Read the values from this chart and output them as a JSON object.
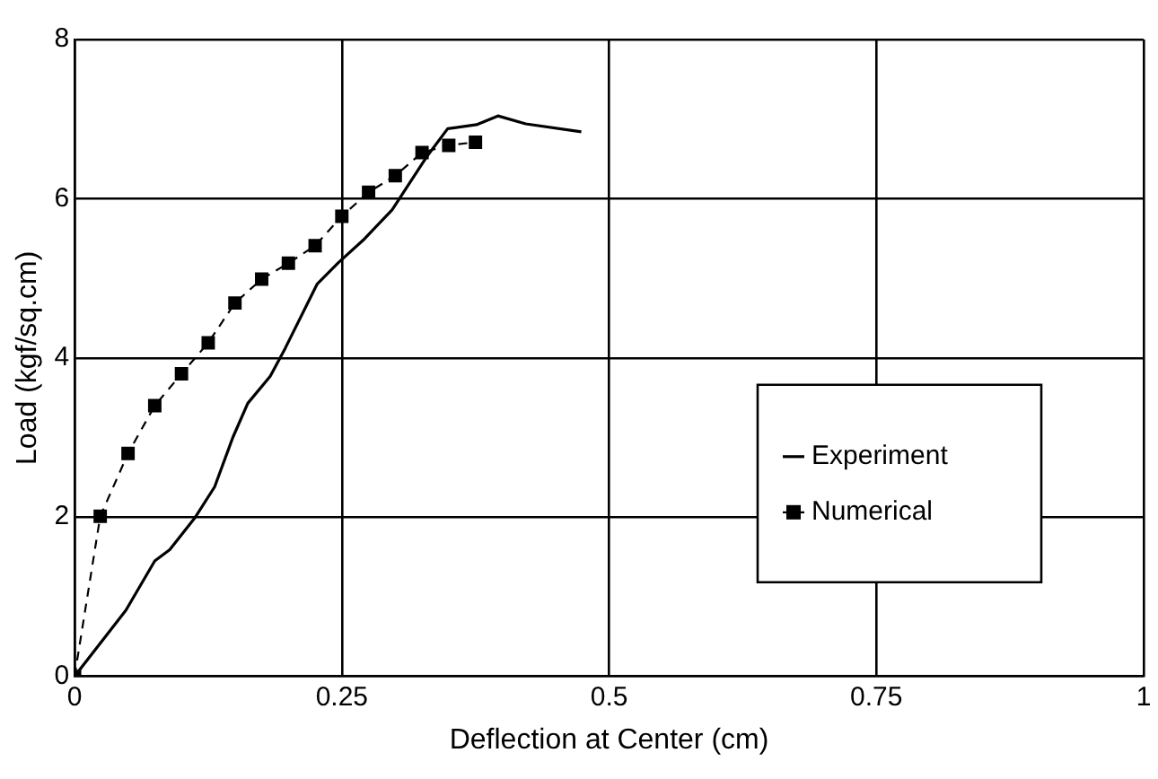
{
  "chart_data": {
    "type": "line",
    "xlabel": "Deflection at Center (cm)",
    "ylabel": "Load (kgf/sq.cm)",
    "xlim": [
      0,
      1
    ],
    "xticks": [
      0,
      0.25,
      0.5,
      0.75,
      1
    ],
    "ylim": [
      0,
      8
    ],
    "yticks": [
      0,
      2,
      4,
      6,
      8
    ],
    "grid": true,
    "legend": "right",
    "series": [
      {
        "name": "Experiment",
        "color": "#000000",
        "marker": "none",
        "line_style": "solid",
        "x": [
          0,
          0.048,
          0.075,
          0.089,
          0.113,
          0.131,
          0.148,
          0.162,
          0.183,
          0.197,
          0.227,
          0.247,
          0.27,
          0.297,
          0.329,
          0.349,
          0.376,
          0.396,
          0.422,
          0.474
        ],
        "values": [
          0,
          0.83,
          1.45,
          1.59,
          2.0,
          2.38,
          3.0,
          3.43,
          3.77,
          4.12,
          4.93,
          5.2,
          5.48,
          5.86,
          6.52,
          6.88,
          6.93,
          7.04,
          6.94,
          6.84
        ]
      },
      {
        "name": "Numerical",
        "color": "#000000",
        "marker": "square",
        "line_style": "dashed",
        "x": [
          0,
          0.024,
          0.05,
          0.075,
          0.1,
          0.125,
          0.15,
          0.175,
          0.2,
          0.225,
          0.25,
          0.275,
          0.3,
          0.325,
          0.35,
          0.375
        ],
        "values": [
          0,
          2.01,
          2.8,
          3.4,
          3.8,
          4.19,
          4.69,
          4.99,
          5.19,
          5.41,
          5.78,
          6.08,
          6.29,
          6.58,
          6.67,
          6.71
        ]
      }
    ]
  }
}
